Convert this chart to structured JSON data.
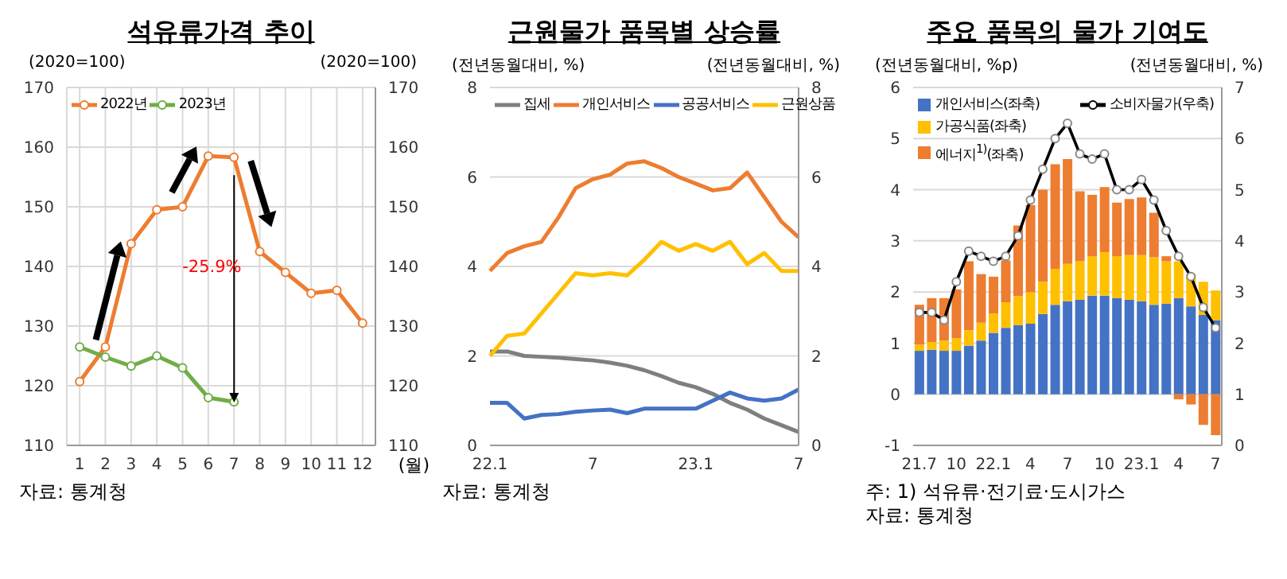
{
  "chart_data": [
    {
      "type": "line",
      "title": "석유류가격 추이",
      "ylabel": "(2020=100)",
      "y2label": "(2020=100)",
      "xlabel": "(월)",
      "x": [
        1,
        2,
        3,
        4,
        5,
        6,
        7,
        8,
        9,
        10,
        11,
        12
      ],
      "xlim": [
        0.5,
        12.5
      ],
      "xticks": [
        1,
        2,
        3,
        4,
        5,
        6,
        7,
        8,
        9,
        10,
        11,
        12
      ],
      "ylim": [
        110,
        170
      ],
      "yticks": [
        110,
        120,
        130,
        140,
        150,
        160,
        170
      ],
      "y2lim": [
        110,
        170
      ],
      "y2ticks": [
        110,
        120,
        130,
        140,
        150,
        160,
        170
      ],
      "grid": true,
      "legend": "top left",
      "marker": "circle",
      "series": [
        {
          "name": "2022년",
          "color": "#ed7d31",
          "values": [
            120.7,
            126.5,
            143.8,
            149.5,
            150,
            158.5,
            158.3,
            142.5,
            139,
            135.5,
            136,
            130.5
          ]
        },
        {
          "name": "2023년",
          "color": "#70ad47",
          "values": [
            126.5,
            124.8,
            123.3,
            125,
            123,
            118,
            117.3,
            null,
            null,
            null,
            null,
            null
          ]
        }
      ],
      "annotations": [
        "-25.9%",
        "자료: 통계청"
      ]
    },
    {
      "type": "line",
      "title": "근원물가 품목별 상승률",
      "ylabel": "(전년동월대비, %)",
      "y2label": "(전년동월대비, %)",
      "categories": [
        "22.1",
        null,
        null,
        null,
        null,
        null,
        "7",
        null,
        null,
        null,
        null,
        null,
        "23.1",
        null,
        null,
        null,
        null,
        null,
        "7"
      ],
      "ylim": [
        0,
        8
      ],
      "yticks": [
        0,
        2,
        4,
        6,
        8
      ],
      "y2lim": [
        0,
        8
      ],
      "y2ticks": [
        0,
        2,
        4,
        6,
        8
      ],
      "grid": "y",
      "legend": "top",
      "series": [
        {
          "name": "집세",
          "color": "#7f7f7f",
          "values": [
            2.1,
            2.1,
            2.0,
            1.98,
            1.96,
            1.93,
            1.9,
            1.85,
            1.78,
            1.68,
            1.55,
            1.4,
            1.3,
            1.15,
            0.95,
            0.8,
            0.6,
            0.45,
            0.3
          ]
        },
        {
          "name": "개인서비스",
          "color": "#ed7d31",
          "values": [
            3.9,
            4.3,
            4.45,
            4.55,
            5.1,
            5.75,
            5.95,
            6.05,
            6.3,
            6.35,
            6.2,
            6.0,
            5.85,
            5.7,
            5.75,
            6.1,
            5.55,
            5.0,
            4.65
          ]
        },
        {
          "name": "공공서비스",
          "color": "#4472c4",
          "values": [
            0.95,
            0.95,
            0.6,
            0.68,
            0.7,
            0.75,
            0.78,
            0.8,
            0.72,
            0.82,
            0.82,
            0.82,
            0.82,
            1.0,
            1.18,
            1.05,
            1.0,
            1.05,
            1.25
          ]
        },
        {
          "name": "근원상품",
          "color": "#ffc000",
          "values": [
            2.0,
            2.45,
            2.5,
            2.95,
            3.4,
            3.85,
            3.8,
            3.85,
            3.8,
            4.15,
            4.55,
            4.35,
            4.5,
            4.35,
            4.55,
            4.05,
            4.3,
            3.9,
            3.9
          ]
        }
      ],
      "annotations": [
        "자료: 통계청"
      ]
    },
    {
      "type": "bar",
      "stacked": true,
      "title": "주요 품목의 물가 기여도",
      "ylabel": "(전년동월대비, %p)",
      "y2label": "(전년동월대비, %)",
      "categories": [
        "21.7",
        null,
        null,
        "10",
        null,
        null,
        "22.1",
        null,
        null,
        "4",
        null,
        null,
        "7",
        null,
        null,
        "10",
        null,
        null,
        "23.1",
        null,
        null,
        "4",
        null,
        null,
        "7"
      ],
      "ylim": [
        -1,
        6
      ],
      "yticks": [
        -1,
        0,
        1,
        2,
        3,
        4,
        5,
        6
      ],
      "y2lim": [
        0,
        7
      ],
      "y2ticks": [
        0,
        1,
        2,
        3,
        4,
        5,
        6,
        7
      ],
      "grid": "y",
      "legend": "top",
      "marker": "circle",
      "series": [
        {
          "name": "개인서비스(좌축)",
          "color": "#4472c4",
          "values": [
            0.85,
            0.87,
            0.85,
            0.85,
            0.95,
            1.05,
            1.2,
            1.3,
            1.35,
            1.38,
            1.57,
            1.75,
            1.82,
            1.85,
            1.93,
            1.93,
            1.88,
            1.85,
            1.82,
            1.75,
            1.77,
            1.88,
            1.72,
            1.55,
            1.45
          ]
        },
        {
          "name": "가공식품(좌축)",
          "color": "#ffc000",
          "values": [
            0.12,
            0.15,
            0.2,
            0.25,
            0.3,
            0.35,
            0.38,
            0.5,
            0.57,
            0.62,
            0.63,
            0.7,
            0.73,
            0.75,
            0.77,
            0.85,
            0.82,
            0.87,
            0.9,
            0.93,
            0.83,
            0.72,
            0.63,
            0.65,
            0.58
          ]
        },
        {
          "name": "에너지$^{1)}$(좌축)",
          "color": "#ed7d31",
          "values": [
            0.78,
            0.86,
            0.83,
            0.95,
            1.35,
            0.95,
            0.72,
            0.82,
            1.38,
            1.7,
            1.8,
            2.05,
            2.05,
            1.37,
            1.2,
            1.27,
            1.05,
            1.1,
            1.13,
            0.87,
            0.1,
            -0.1,
            -0.2,
            -0.6,
            -0.8
          ]
        },
        {
          "name": "소비자물가(우축)",
          "color": "#000000",
          "type": "line",
          "axis": "y2",
          "values": [
            2.6,
            2.6,
            2.45,
            3.2,
            3.8,
            3.7,
            3.6,
            3.7,
            4.1,
            4.8,
            5.4,
            6.0,
            6.3,
            5.7,
            5.6,
            5.7,
            5.0,
            5.0,
            5.2,
            4.8,
            4.2,
            3.7,
            3.3,
            2.7,
            2.3
          ]
        }
      ],
      "annotations": [
        "주: 1) 석유류·전기료·도시가스",
        "자료: 통계청"
      ]
    }
  ]
}
